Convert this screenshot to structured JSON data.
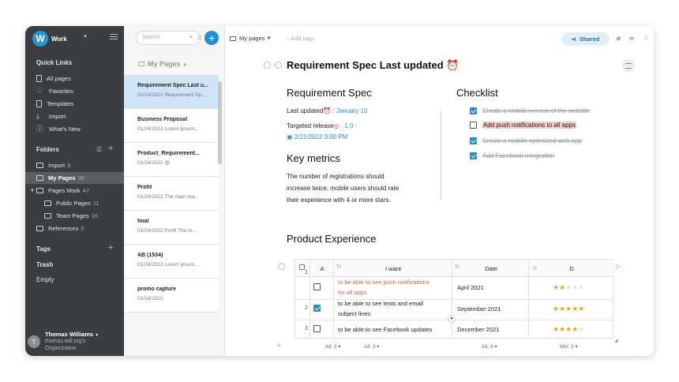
{
  "workspace": {
    "logo": "W",
    "name": "Work"
  },
  "sidebar": {
    "quick_links_title": "Quick Links",
    "quick_links": [
      {
        "label": "All pages",
        "icon": "page-icon"
      },
      {
        "label": "Favorites",
        "icon": "heart-icon"
      },
      {
        "label": "Templates",
        "icon": "template-icon"
      },
      {
        "label": "Import",
        "icon": "import-icon"
      },
      {
        "label": "What's New",
        "icon": "info-icon"
      }
    ],
    "folders_title": "Folders",
    "folders": [
      {
        "label": "Import",
        "count": "8"
      },
      {
        "label": "My Pages",
        "count": "39"
      },
      {
        "label": "Pages Work",
        "count": "47"
      },
      {
        "label": "Public Pages",
        "count": "11"
      },
      {
        "label": "Team Pages",
        "count": "16"
      },
      {
        "label": "References",
        "count": "5"
      }
    ],
    "tags_title": "Tags",
    "trash": "Trash",
    "empty": "Empty",
    "user": {
      "initial": "T",
      "name": "Thomas Williams",
      "email": "thomas.will.org's",
      "org": "Organization"
    }
  },
  "list": {
    "search_placeholder": "Search",
    "heading": "My Pages",
    "cards": [
      {
        "title": "Requirement Spec Last u...",
        "sub": "02/14/2022 Requirement Sp..."
      },
      {
        "title": "Business Proposal",
        "sub": "01/24/2022 Lorem ipsum..."
      },
      {
        "title": "Product_Requirement...",
        "sub": "01/24/2022 @"
      },
      {
        "title": "Profit",
        "sub": "01/24/2022 The main rea..."
      },
      {
        "title": "final",
        "sub": "01/24/2022 Profit The m..."
      },
      {
        "title": "AB (1534)",
        "sub": "01/24/2022 Lorem ipsum..."
      },
      {
        "title": "promo capture",
        "sub": "01/24/2022"
      }
    ]
  },
  "topbar": {
    "breadcrumb": "My pages",
    "add_tags": "Add tags",
    "shared": "Shared"
  },
  "doc": {
    "title": "Requirement Spec Last updated",
    "req_heading": "Requirement Spec",
    "last_updated_label": "Last updated",
    "last_updated_value": ": January 10",
    "targeted_label": "Targeted release",
    "targeted_value": ": 1.0 -",
    "targeted_date": "2/21/2022 3:00 PM",
    "key_metrics_heading": "Key metrics",
    "key_metrics_text_1": "The number of registrations should",
    "key_metrics_text_2": "increase twice, mobile users should rate",
    "key_metrics_text_3": "their experience with 4 or more stars.",
    "checklist_heading": "Checklist",
    "checklist": [
      {
        "text": "Create a mobile version of the website",
        "checked": true
      },
      {
        "text": "Add push notifications to all apps",
        "checked": false
      },
      {
        "text": "Create a mobile-optimized web app",
        "checked": true
      },
      {
        "text": "Add Facebook integration",
        "checked": true
      }
    ],
    "product_heading": "Product Experience"
  },
  "table": {
    "columns": [
      "A",
      "I want",
      "Date",
      "D"
    ],
    "rows": [
      {
        "num": "1",
        "checked": false,
        "want_1": "to be able to see push notifications",
        "want_2": "for all apps",
        "date": "April 2021",
        "stars": 2
      },
      {
        "num": "2",
        "checked": true,
        "want_1": "to be able to see texts and email",
        "want_2": "subject lines",
        "date": "September 2021",
        "stars": 5
      },
      {
        "num": "3",
        "checked": false,
        "want_1": "to be able to see Facebook updates",
        "want_2": "",
        "date": "December 2021",
        "stars": 4
      }
    ],
    "agg": {
      "a": "All: 3",
      "want": "All: 3",
      "date": "All: 3",
      "d": "Min: 2"
    }
  },
  "colors": {
    "sidebar": "#3a3d41",
    "accent": "#1f8fd6",
    "star": "#e6a528",
    "highlight": "#f8cbc7"
  }
}
